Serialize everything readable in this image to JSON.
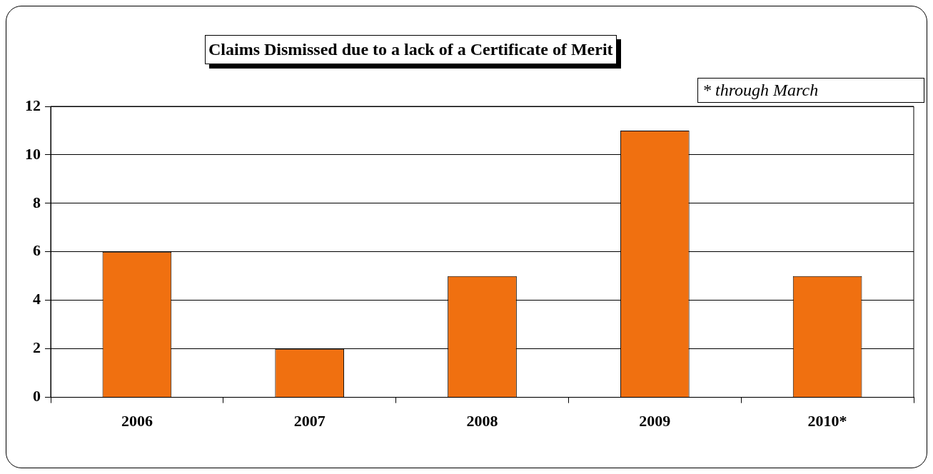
{
  "chart_data": {
    "type": "bar",
    "title": "Claims Dismissed due to a lack of a Certificate of Merit",
    "annotations": [
      "* through March"
    ],
    "categories": [
      "2006",
      "2007",
      "2008",
      "2009",
      "2010*"
    ],
    "values": [
      6,
      2,
      5,
      11,
      5
    ],
    "color": "#f07010",
    "ylim": [
      0,
      12
    ],
    "yticks": [
      0,
      2,
      4,
      6,
      8,
      10,
      12
    ],
    "grid": "y",
    "legend": false
  }
}
